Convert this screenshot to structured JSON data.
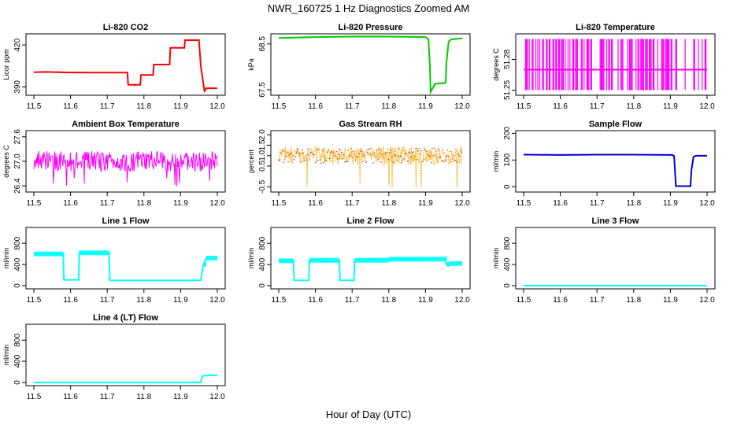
{
  "figure": {
    "title": "NWR_160725  1 Hz Diagnostics Zoomed AM",
    "xlabel": "Hour of Day (UTC)"
  },
  "chart_data": [
    {
      "type": "line",
      "title": "Li-820 CO2",
      "ylabel": "Licor ppm",
      "color": "#ff0000",
      "xlim": [
        11.5,
        12.0
      ],
      "ylim": [
        384,
        428
      ],
      "xticks": [
        "11.5",
        "11.6",
        "11.7",
        "11.8",
        "11.9",
        "12.0"
      ],
      "yticks": [
        {
          "v": 390,
          "l": "390"
        },
        {
          "v": 420,
          "l": "420"
        }
      ],
      "series": [
        {
          "x": [
            11.5,
            11.53,
            11.6,
            11.7,
            11.755,
            11.757,
            11.79,
            11.792,
            11.825,
            11.827,
            11.87,
            11.872,
            11.91,
            11.912,
            11.95,
            11.955,
            11.965,
            11.97,
            12.0
          ],
          "y": [
            400.5,
            400.7,
            400.3,
            400.2,
            400.2,
            391.5,
            391.5,
            398.5,
            398.5,
            406,
            406,
            418,
            418,
            423.5,
            423.5,
            405,
            387,
            389,
            389
          ]
        }
      ]
    },
    {
      "type": "line",
      "title": "Li-820 Pressure",
      "ylabel": "kPa",
      "color": "#00cc00",
      "xlim": [
        11.5,
        12.0
      ],
      "ylim": [
        67.38,
        68.72
      ],
      "xticks": [
        "11.5",
        "11.6",
        "11.7",
        "11.8",
        "11.9",
        "12.0"
      ],
      "yticks": [
        {
          "v": 67.5,
          "l": "67.5"
        },
        {
          "v": 68.5,
          "l": "68.5"
        }
      ],
      "series": [
        {
          "x": [
            11.5,
            11.6,
            11.7,
            11.8,
            11.9,
            11.908,
            11.912,
            11.914,
            11.925,
            11.93,
            11.955,
            11.957,
            11.963,
            11.97,
            12.0
          ],
          "y": [
            68.63,
            68.65,
            68.66,
            68.66,
            68.65,
            68.6,
            68.0,
            67.45,
            67.62,
            67.63,
            67.65,
            68.1,
            68.55,
            68.6,
            68.62
          ]
        }
      ]
    },
    {
      "type": "line",
      "title": "Li-820 Temperature",
      "ylabel": "degrees C",
      "color": "#ff00ff",
      "xlim": [
        11.5,
        12.0
      ],
      "ylim": [
        51.245,
        51.305
      ],
      "xticks": [
        "11.5",
        "11.6",
        "11.7",
        "11.8",
        "11.9",
        "12.0"
      ],
      "yticks": [
        {
          "v": 51.25,
          "l": "51.25"
        },
        {
          "v": 51.28,
          "l": "51.28"
        }
      ],
      "series": [
        {
          "values": [
            51.25,
            51.27,
            51.3
          ]
        }
      ]
    },
    {
      "type": "line",
      "title": "Ambient Box Temperature",
      "ylabel": "degrees C",
      "color": "#ff00ff",
      "xlim": [
        11.5,
        12.0
      ],
      "ylim": [
        26.25,
        27.75
      ],
      "xticks": [
        "11.5",
        "11.6",
        "11.7",
        "11.8",
        "11.9",
        "12.0"
      ],
      "yticks": [
        {
          "v": 26.4,
          "l": "26.4"
        },
        {
          "v": 27.0,
          "l": "27.0"
        },
        {
          "v": 27.6,
          "l": "27.6"
        }
      ],
      "series": [
        {
          "base": 27.0,
          "noise": 0.25,
          "spike_low": 26.3
        }
      ]
    },
    {
      "type": "scatter",
      "title": "Gas Stream RH",
      "ylabel": "percent",
      "color": "#ffa500",
      "xlim": [
        11.5,
        12.0
      ],
      "ylim": [
        -0.75,
        2.2
      ],
      "xticks": [
        "11.5",
        "11.6",
        "11.7",
        "11.8",
        "11.9",
        "12.0"
      ],
      "yticks": [
        {
          "v": -0.5,
          "l": "-0.5"
        },
        {
          "v": 0.5,
          "l": "0.5"
        },
        {
          "v": 1.0,
          "l": "1.0"
        },
        {
          "v": 1.5,
          "l": "1.5"
        },
        {
          "v": 2.0,
          "l": "2.0"
        }
      ],
      "series": [
        {
          "base": 1.0,
          "noise": 0.45,
          "spike_low": -0.6
        }
      ]
    },
    {
      "type": "line",
      "title": "Sample Flow",
      "ylabel": "ml/min",
      "color": "#0000cc",
      "xlim": [
        11.5,
        12.0
      ],
      "ylim": [
        -20,
        210
      ],
      "xticks": [
        "11.5",
        "11.6",
        "11.7",
        "11.8",
        "11.9",
        "12.0"
      ],
      "yticks": [
        {
          "v": 0,
          "l": "0"
        },
        {
          "v": 100,
          "l": "100"
        },
        {
          "v": 200,
          "l": "200"
        }
      ],
      "series": [
        {
          "x": [
            11.5,
            11.6,
            11.7,
            11.8,
            11.905,
            11.91,
            11.915,
            11.955,
            11.957,
            11.963,
            11.97,
            12.0
          ],
          "y": [
            120,
            119,
            120,
            120,
            119,
            115,
            2,
            2,
            60,
            112,
            116,
            116
          ]
        }
      ]
    },
    {
      "type": "line",
      "title": "Line 1 Flow",
      "ylabel": "ml/min",
      "color": "#00ffff",
      "xlim": [
        11.5,
        12.0
      ],
      "ylim": [
        -60,
        1100
      ],
      "xticks": [
        "11.5",
        "11.6",
        "11.7",
        "11.8",
        "11.9",
        "12.0"
      ],
      "yticks": [
        {
          "v": 0,
          "l": "0"
        },
        {
          "v": 400,
          "l": "400"
        },
        {
          "v": 800,
          "l": "800"
        }
      ],
      "series": [
        {
          "x": [
            11.5,
            11.58,
            11.582,
            11.622,
            11.624,
            11.705,
            11.707,
            11.955,
            11.962,
            11.97,
            12.0
          ],
          "y": [
            600,
            600,
            110,
            110,
            620,
            620,
            100,
            100,
            400,
            520,
            540
          ]
        }
      ]
    },
    {
      "type": "line",
      "title": "Line 2 Flow",
      "ylabel": "ml/min",
      "color": "#00ffff",
      "xlim": [
        11.5,
        12.0
      ],
      "ylim": [
        -60,
        1100
      ],
      "xticks": [
        "11.5",
        "11.6",
        "11.7",
        "11.8",
        "11.9",
        "12.0"
      ],
      "yticks": [
        {
          "v": 0,
          "l": "0"
        },
        {
          "v": 400,
          "l": "400"
        },
        {
          "v": 800,
          "l": "800"
        }
      ],
      "series": [
        {
          "x": [
            11.5,
            11.54,
            11.542,
            11.582,
            11.584,
            11.665,
            11.667,
            11.705,
            11.707,
            11.8,
            11.95,
            11.958,
            11.965,
            12.0
          ],
          "y": [
            470,
            470,
            100,
            100,
            480,
            480,
            100,
            100,
            480,
            500,
            510,
            400,
            420,
            420
          ]
        }
      ]
    },
    {
      "type": "line",
      "title": "Line 3 Flow",
      "ylabel": "ml/min",
      "color": "#00ffff",
      "xlim": [
        11.5,
        12.0
      ],
      "ylim": [
        -60,
        1100
      ],
      "xticks": [
        "11.5",
        "11.6",
        "11.7",
        "11.8",
        "11.9",
        "12.0"
      ],
      "yticks": [
        {
          "v": 0,
          "l": "0"
        },
        {
          "v": 400,
          "l": "400"
        },
        {
          "v": 800,
          "l": "800"
        }
      ],
      "series": [
        {
          "x": [
            11.5,
            12.0
          ],
          "y": [
            0,
            0
          ]
        }
      ]
    },
    {
      "type": "line",
      "title": "Line 4 (LT) Flow",
      "ylabel": "ml/min",
      "color": "#00ffff",
      "xlim": [
        11.5,
        12.0
      ],
      "ylim": [
        -60,
        1100
      ],
      "xticks": [
        "11.5",
        "11.6",
        "11.7",
        "11.8",
        "11.9",
        "12.0"
      ],
      "yticks": [
        {
          "v": 0,
          "l": "0"
        },
        {
          "v": 400,
          "l": "400"
        },
        {
          "v": 800,
          "l": "800"
        }
      ],
      "series": [
        {
          "x": [
            11.5,
            11.955,
            11.957,
            11.962,
            12.0
          ],
          "y": [
            0,
            0,
            80,
            130,
            135
          ]
        }
      ]
    }
  ]
}
